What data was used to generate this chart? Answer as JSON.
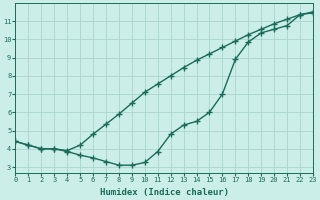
{
  "line1_x": [
    0,
    1,
    2,
    3,
    4,
    5,
    6,
    7,
    8,
    9,
    10,
    11,
    12,
    13,
    14,
    15,
    16,
    17,
    18,
    19,
    20,
    21,
    22,
    23
  ],
  "line1_y": [
    4.4,
    4.2,
    4.0,
    4.0,
    3.85,
    3.65,
    3.5,
    3.3,
    3.1,
    3.1,
    3.25,
    3.85,
    4.8,
    5.3,
    5.5,
    6.0,
    7.0,
    8.9,
    9.85,
    10.35,
    10.55,
    10.75,
    11.35,
    11.45
  ],
  "line2_x": [
    0,
    1,
    2,
    3,
    4,
    5,
    6,
    7,
    8,
    9,
    10,
    11,
    12,
    13,
    14,
    15,
    16,
    17,
    18,
    19,
    20,
    21,
    22,
    23
  ],
  "line2_y": [
    4.4,
    4.2,
    4.0,
    4.0,
    3.9,
    4.2,
    4.8,
    5.35,
    5.9,
    6.5,
    7.1,
    7.55,
    8.0,
    8.45,
    8.85,
    9.2,
    9.55,
    9.9,
    10.25,
    10.55,
    10.85,
    11.1,
    11.35,
    11.5
  ],
  "line_color": "#1a6b5a",
  "marker": "+",
  "markersize": 4,
  "linewidth": 1.0,
  "markeredgewidth": 1.0,
  "bg_color": "#cceee8",
  "grid_color": "#aad4ce",
  "xlabel": "Humidex (Indice chaleur)",
  "yticks": [
    3,
    4,
    5,
    6,
    7,
    8,
    9,
    10,
    11
  ],
  "xlim": [
    0,
    23
  ],
  "ylim": [
    2.7,
    12.0
  ],
  "xtick_labels": [
    "0",
    "1",
    "2",
    "3",
    "4",
    "5",
    "6",
    "7",
    "8",
    "9",
    "10",
    "11",
    "12",
    "13",
    "14",
    "15",
    "16",
    "17",
    "18",
    "19",
    "20",
    "21",
    "22",
    "23"
  ],
  "tick_fontsize": 5.0,
  "label_fontsize": 6.5
}
